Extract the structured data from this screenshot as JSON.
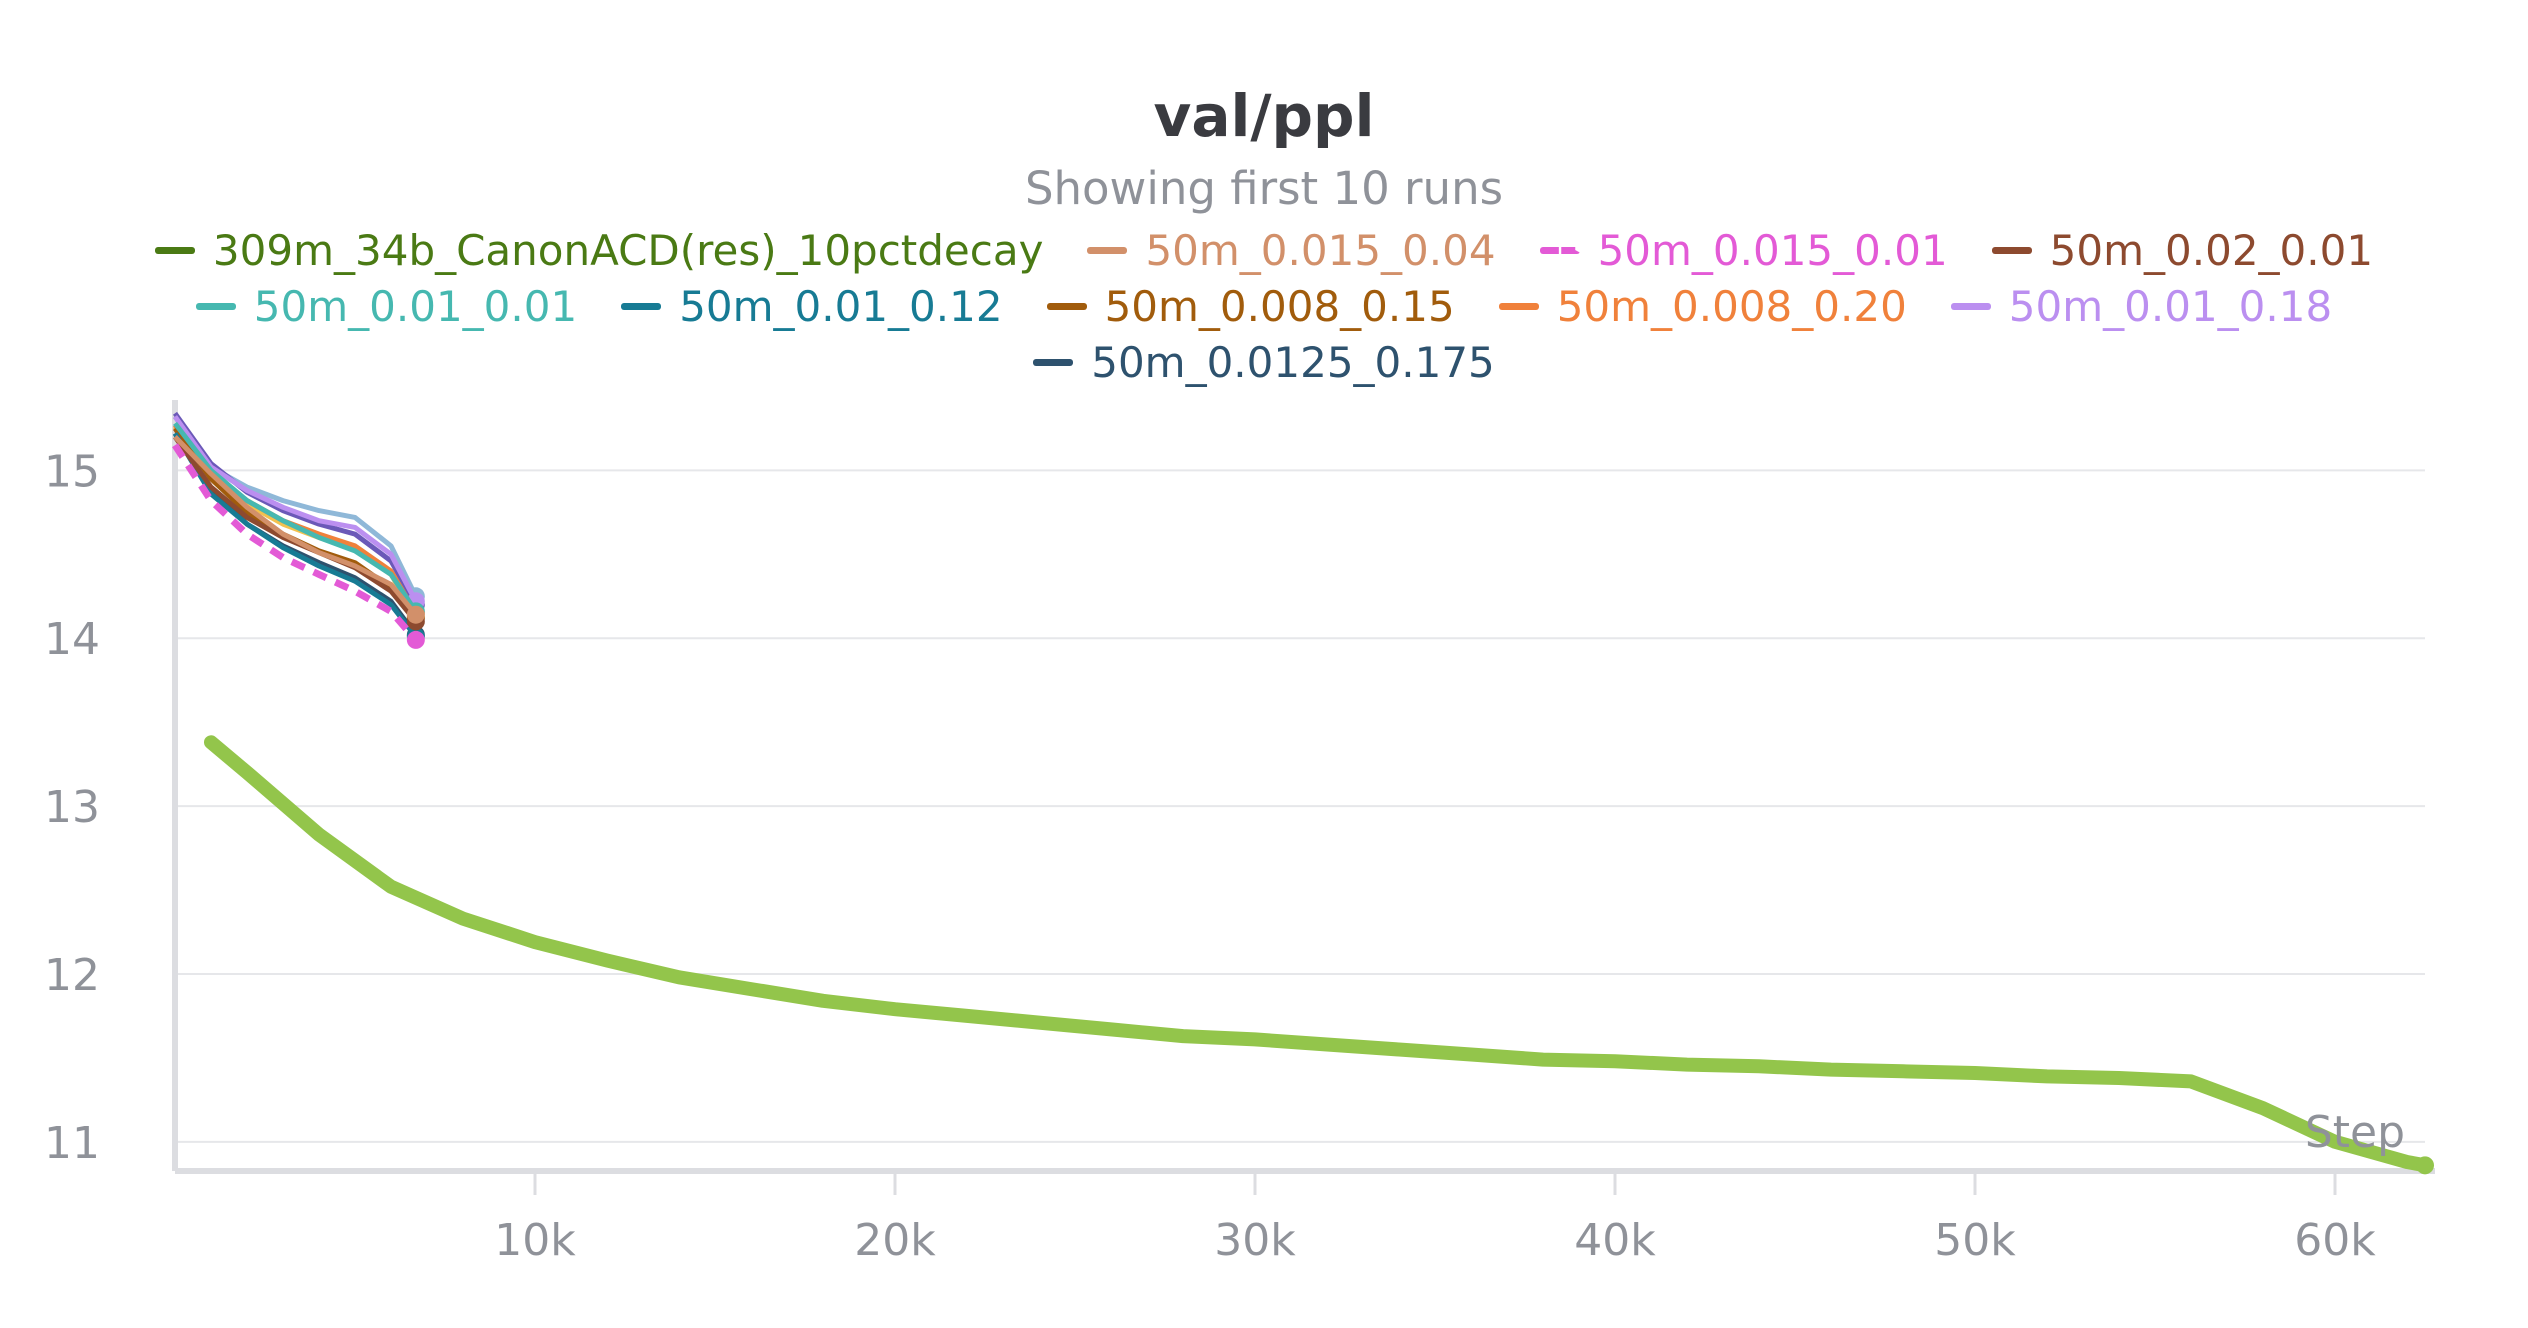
{
  "chart_data": {
    "type": "line",
    "title": "val/ppl",
    "subtitle": "Showing first 10 runs",
    "xlabel": "Step",
    "ylabel": "",
    "xlim": [
      0,
      62500
    ],
    "ylim": [
      10.85,
      15.3
    ],
    "xticks": [
      10000,
      20000,
      30000,
      40000,
      50000,
      60000
    ],
    "xtick_labels": [
      "10k",
      "20k",
      "30k",
      "40k",
      "50k",
      "60k"
    ],
    "yticks": [
      11,
      12,
      13,
      14,
      15
    ],
    "ytick_labels": [
      "11",
      "12",
      "13",
      "14",
      "15"
    ],
    "grid": true,
    "legend_position": "top",
    "series": [
      {
        "name": "309m_34b_CanonACD(res)_10pctdecay",
        "legend_color": "#4a7a14",
        "color": "#93c54b",
        "dashed": false,
        "x": [
          1000,
          2000,
          4000,
          6000,
          8000,
          10000,
          12000,
          14000,
          16000,
          18000,
          20000,
          22000,
          24000,
          26000,
          28000,
          30000,
          32000,
          34000,
          36000,
          38000,
          40000,
          42000,
          44000,
          46000,
          48000,
          50000,
          52000,
          54000,
          56000,
          58000,
          60000,
          62000,
          62500
        ],
        "y": [
          13.38,
          13.2,
          12.83,
          12.52,
          12.33,
          12.19,
          12.08,
          11.98,
          11.91,
          11.84,
          11.79,
          11.75,
          11.71,
          11.67,
          11.63,
          11.61,
          11.58,
          11.55,
          11.52,
          11.49,
          11.48,
          11.46,
          11.45,
          11.43,
          11.42,
          11.41,
          11.39,
          11.38,
          11.36,
          11.2,
          11.0,
          10.88,
          10.86
        ]
      },
      {
        "name": "50m_0.015_0.04",
        "color": "#d2906a",
        "dashed": false,
        "x": [
          0,
          1000,
          2000,
          3000,
          4000,
          5000,
          6000,
          6690
        ],
        "y": [
          15.2,
          14.98,
          14.78,
          14.62,
          14.51,
          14.43,
          14.32,
          14.14
        ]
      },
      {
        "name": "50m_0.015_0.01",
        "color": "#e35ad6",
        "dashed": true,
        "x": [
          0,
          1000,
          2000,
          3000,
          4000,
          5000,
          6000,
          6690
        ],
        "y": [
          15.15,
          14.82,
          14.62,
          14.48,
          14.38,
          14.28,
          14.16,
          13.99
        ]
      },
      {
        "name": "50m_0.02_0.01",
        "color": "#8d4a2f",
        "dashed": false,
        "x": [
          0,
          1000,
          2000,
          3000,
          4000,
          5000,
          6000,
          6690
        ],
        "y": [
          15.2,
          14.9,
          14.72,
          14.6,
          14.51,
          14.42,
          14.28,
          14.1
        ]
      },
      {
        "name": "50m_0.01_0.01",
        "color": "#46b8b0",
        "dashed": false,
        "x": [
          0,
          1000,
          2000,
          3000,
          4000,
          5000,
          6000,
          6690
        ],
        "y": [
          15.28,
          15.0,
          14.82,
          14.7,
          14.6,
          14.52,
          14.38,
          14.16
        ]
      },
      {
        "name": "50m_0.01_0.12",
        "color": "#177b94",
        "dashed": false,
        "x": [
          0,
          1000,
          2000,
          3000,
          4000,
          5000,
          6000,
          6690
        ],
        "y": [
          15.22,
          14.86,
          14.68,
          14.54,
          14.43,
          14.34,
          14.2,
          14.01
        ]
      },
      {
        "name": "50m_0.008_0.15",
        "color": "#a15c0c",
        "dashed": false,
        "x": [
          0,
          1000,
          2000,
          3000,
          4000,
          5000,
          6000,
          6690
        ],
        "y": [
          15.25,
          14.95,
          14.75,
          14.62,
          14.52,
          14.45,
          14.3,
          14.12
        ]
      },
      {
        "name": "50m_0.008_0.20",
        "color": "#f0813b",
        "dashed": false,
        "x": [
          0,
          1000,
          2000,
          3000,
          4000,
          5000,
          6000,
          6690
        ],
        "y": [
          15.27,
          14.98,
          14.82,
          14.7,
          14.62,
          14.55,
          14.4,
          14.15
        ]
      },
      {
        "name": "50m_0.01_0.18",
        "color": "#bb8ff0",
        "dashed": false,
        "x": [
          0,
          1000,
          2000,
          3000,
          4000,
          5000,
          6000,
          6690
        ],
        "y": [
          15.32,
          15.02,
          14.88,
          14.78,
          14.7,
          14.66,
          14.5,
          14.22
        ]
      },
      {
        "name": "50m_0.0125_0.175",
        "color": "#2e526e",
        "dashed": false,
        "x": [
          0,
          1000,
          2000,
          3000,
          4000,
          5000,
          6000,
          6690
        ],
        "y": [
          15.22,
          14.88,
          14.68,
          14.55,
          14.45,
          14.36,
          14.22,
          14.02
        ]
      }
    ],
    "extra_series_colors": [
      "#8fb8d8",
      "#f2c14e",
      "#6b59b8"
    ],
    "extra_series": [
      {
        "x": [
          0,
          1000,
          2000,
          3000,
          4000,
          5000,
          6000,
          6690
        ],
        "y": [
          15.32,
          15.02,
          14.9,
          14.82,
          14.76,
          14.72,
          14.55,
          14.25
        ]
      },
      {
        "x": [
          0,
          1000,
          2000,
          3000,
          4000,
          5000,
          6000,
          6690
        ],
        "y": [
          15.26,
          14.96,
          14.8,
          14.68,
          14.6,
          14.53,
          14.38,
          14.13
        ]
      },
      {
        "x": [
          0,
          1000,
          2000,
          3000,
          4000,
          5000,
          6000,
          6690
        ],
        "y": [
          15.34,
          15.04,
          14.87,
          14.76,
          14.68,
          14.62,
          14.46,
          14.2
        ]
      }
    ]
  }
}
